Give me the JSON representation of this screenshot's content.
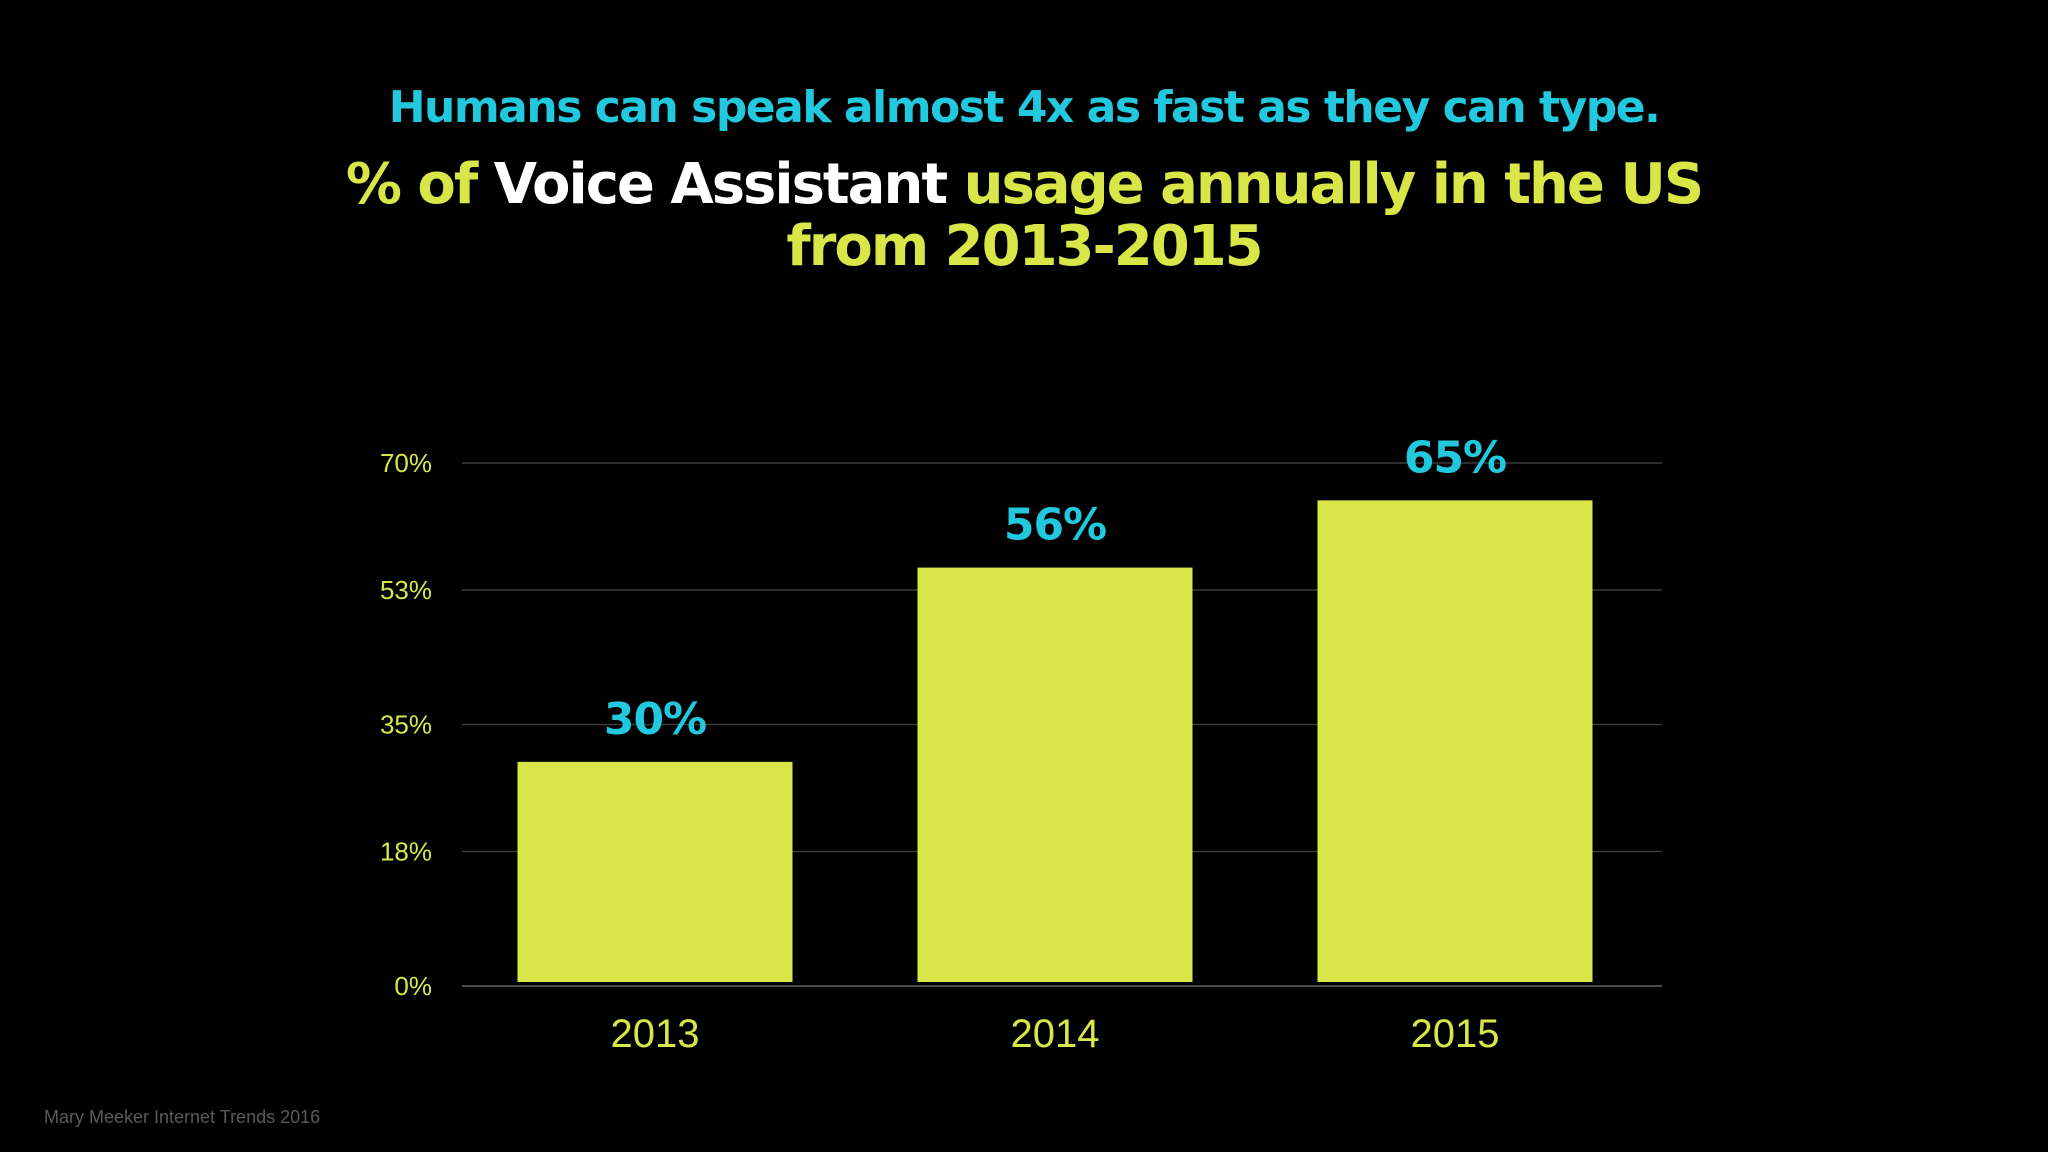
{
  "slide": {
    "subheading": "Humans can speak almost 4x as fast as they can type.",
    "title_prefix": "% of ",
    "title_highlight": "Voice Assistant",
    "title_line1_rest": " usage annually in the US",
    "title_line2": "from 2013-2015",
    "source": "Mary Meeker Internet Trends 2016"
  },
  "colors": {
    "background": "#000000",
    "bar": "#d8e648",
    "data_label": "#22c8de",
    "axis_text": "#d8e648",
    "highlight": "#ffffff",
    "grid": "#3a3a3a"
  },
  "chart_data": {
    "type": "bar",
    "title": "% of Voice Assistant usage annually in the US from 2013-2015",
    "xlabel": "",
    "ylabel": "",
    "categories": [
      "2013",
      "2014",
      "2015"
    ],
    "values": [
      30,
      56,
      65
    ],
    "data_labels": [
      "30%",
      "56%",
      "65%"
    ],
    "ylim": [
      0,
      70
    ],
    "yticks": [
      0,
      18,
      35,
      53,
      70
    ],
    "ytick_labels": [
      "0%",
      "18%",
      "35%",
      "53%",
      "70%"
    ],
    "grid": true,
    "legend": "none"
  }
}
